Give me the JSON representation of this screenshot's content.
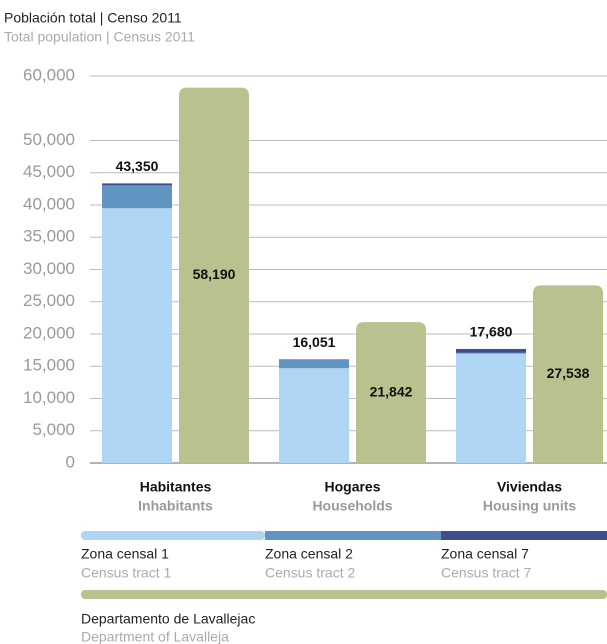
{
  "chart_data": {
    "type": "stacked_bar_pair",
    "title": "Población total | Censo 2011",
    "subtitle": "Total population | Census 2011",
    "categories": [
      "Habitantes",
      "Hogares",
      "Viviendas"
    ],
    "categories_en": [
      "Inhabitants",
      "Households",
      "Housing units"
    ],
    "series": [
      {
        "name": "Zona censal 1",
        "name_en": "Census tract 1",
        "color": "#aed6f3",
        "values": [
          39500,
          14700,
          16950
        ]
      },
      {
        "name": "Zona censal 2",
        "name_en": "Census tract 2",
        "color": "#5f95c0",
        "values": [
          3550,
          1250,
          130
        ]
      },
      {
        "name": "Zona censal 7",
        "name_en": "Census tract 7",
        "color": "#3d4d8f",
        "values": [
          300,
          101,
          600
        ]
      }
    ],
    "total_labels": [
      "43,350",
      "16,051",
      "17,680"
    ],
    "department": {
      "name": "Departamento de Lavallejac",
      "name_en": "Department of Lavalleja",
      "color": "#b9c28e",
      "values": [
        58190,
        21842,
        27538
      ],
      "value_labels": [
        "58,190",
        "21,842",
        "27,538"
      ]
    },
    "ylim": [
      0,
      60000
    ],
    "yticks": [
      {
        "value": 0,
        "label": "0"
      },
      {
        "value": 5000,
        "label": "5,000"
      },
      {
        "value": 10000,
        "label": "10,000"
      },
      {
        "value": 15000,
        "label": "15,000"
      },
      {
        "value": 20000,
        "label": "20,000"
      },
      {
        "value": 25000,
        "label": "25,000"
      },
      {
        "value": 30000,
        "label": "30,000"
      },
      {
        "value": 35000,
        "label": "35,000"
      },
      {
        "value": 40000,
        "label": "40,000"
      },
      {
        "value": 45000,
        "label": "45,000"
      },
      {
        "value": 50000,
        "label": "50,000"
      },
      {
        "value": 60000,
        "label": "60,000"
      }
    ],
    "grid": true
  }
}
